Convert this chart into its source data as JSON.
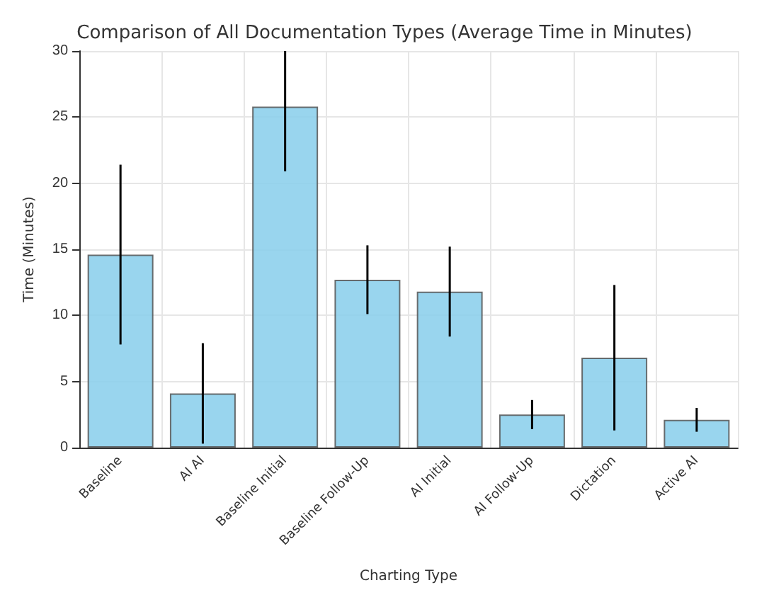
{
  "chart_data": {
    "type": "bar",
    "title": "Comparison of All Documentation Types (Average Time in Minutes)",
    "xlabel": "Charting Type",
    "ylabel": "Time (Minutes)",
    "categories": [
      "Baseline",
      "AI AI",
      "Baseline Initial",
      "Baseline Follow-Up",
      "AI Initial",
      "AI Follow-Up",
      "Dictation",
      "Active AI"
    ],
    "values": [
      14.6,
      4.1,
      25.8,
      12.7,
      11.8,
      2.5,
      6.8,
      2.1
    ],
    "errors": [
      6.8,
      3.8,
      [
        20.9,
        30
      ],
      2.6,
      3.4,
      1.1,
      5.5,
      0.9
    ],
    "color": "#87ceeb",
    "ylim": [
      0,
      30
    ],
    "yticks": [
      0,
      5,
      10,
      15,
      20,
      25,
      30
    ],
    "grid": true
  }
}
